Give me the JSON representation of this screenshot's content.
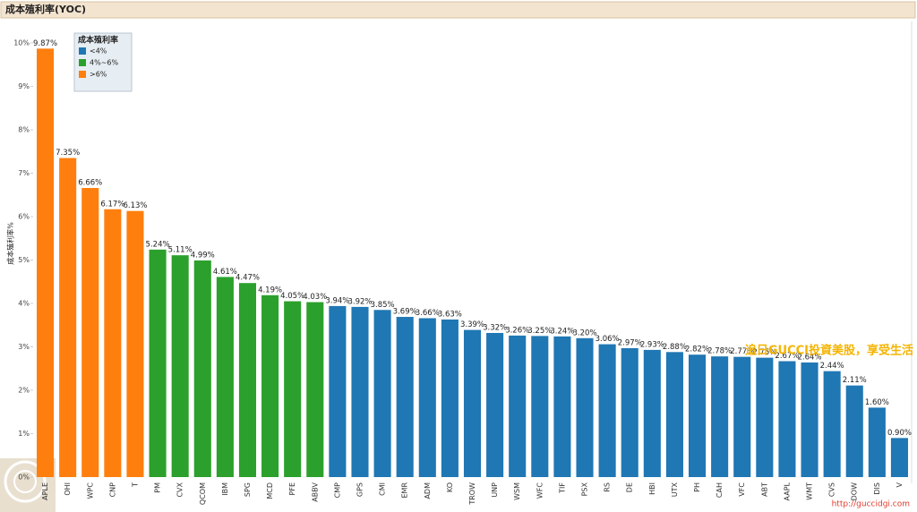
{
  "chart_data": {
    "type": "bar",
    "title": "成本殖利率(YOC)",
    "y_label": "成本殖利率%",
    "categories": [
      "APLE",
      "OHI",
      "WPC",
      "CNP",
      "T",
      "PM",
      "CVX",
      "QCOM",
      "IBM",
      "SPG",
      "MCD",
      "PFE",
      "ABBV",
      "CMP",
      "GPS",
      "CMI",
      "EMR",
      "ADM",
      "KO",
      "TROW",
      "UNP",
      "WSM",
      "WFC",
      "TIF",
      "PSX",
      "RS",
      "DE",
      "HBI",
      "UTX",
      "PH",
      "CAH",
      "VFC",
      "ABT",
      "AAPL",
      "WMT",
      "CVS",
      "DOW",
      "DIS",
      "V"
    ],
    "legend_title": "成本殖利率",
    "series": [
      {
        "name": "<4%",
        "color": "#1f77b4",
        "values": [
          null,
          null,
          null,
          null,
          null,
          null,
          null,
          null,
          null,
          null,
          null,
          null,
          null,
          3.94,
          3.92,
          3.85,
          3.69,
          3.66,
          3.63,
          3.39,
          3.32,
          3.26,
          3.25,
          3.24,
          3.2,
          3.06,
          2.97,
          2.93,
          2.88,
          2.82,
          2.78,
          2.77,
          2.75,
          2.67,
          2.64,
          2.44,
          2.11,
          1.6,
          0.9
        ],
        "value_labels": [
          null,
          null,
          null,
          null,
          null,
          null,
          null,
          null,
          null,
          null,
          null,
          null,
          null,
          "3.94%",
          "3.92%",
          "3.85%",
          "3.69%",
          "3.66%",
          "3.63%",
          "3.39%",
          "3.32%",
          "3.26%",
          "3.25%",
          "3.24%",
          "3.20%",
          "3.06%",
          "2.97%",
          "2.93%",
          "2.88%",
          "2.82%",
          "2.78%",
          "2.77%",
          "2.75%",
          "2.67%",
          "2.64%",
          "2.44%",
          "2.11%",
          "1.60%",
          "0.90%"
        ]
      },
      {
        "name": "4%~6%",
        "color": "#2ca02c",
        "values": [
          null,
          null,
          null,
          null,
          null,
          5.24,
          5.11,
          4.99,
          4.61,
          4.47,
          4.19,
          4.05,
          4.03,
          null,
          null,
          null,
          null,
          null,
          null,
          null,
          null,
          null,
          null,
          null,
          null,
          null,
          null,
          null,
          null,
          null,
          null,
          null,
          null,
          null,
          null,
          null,
          null,
          null,
          null
        ],
        "value_labels": [
          null,
          null,
          null,
          null,
          null,
          "5.24%",
          "5.11%",
          "4.99%",
          "4.61%",
          "4.47%",
          "4.19%",
          "4.05%",
          "4.03%",
          null,
          null,
          null,
          null,
          null,
          null,
          null,
          null,
          null,
          null,
          null,
          null,
          null,
          null,
          null,
          null,
          null,
          null,
          null,
          null,
          null,
          null,
          null,
          null,
          null,
          null
        ]
      },
      {
        "name": ">6%",
        "color": "#ff7f0e",
        "values": [
          9.87,
          7.35,
          6.66,
          6.17,
          6.13,
          null,
          null,
          null,
          null,
          null,
          null,
          null,
          null,
          null,
          null,
          null,
          null,
          null,
          null,
          null,
          null,
          null,
          null,
          null,
          null,
          null,
          null,
          null,
          null,
          null,
          null,
          null,
          null,
          null,
          null,
          null,
          null,
          null,
          null
        ],
        "value_labels": [
          "9.87%",
          "7.35%",
          "6.66%",
          "6.17%",
          "6.13%",
          null,
          null,
          null,
          null,
          null,
          null,
          null,
          null,
          null,
          null,
          null,
          null,
          null,
          null,
          null,
          null,
          null,
          null,
          null,
          null,
          null,
          null,
          null,
          null,
          null,
          null,
          null,
          null,
          null,
          null,
          null,
          null,
          null,
          null
        ]
      }
    ],
    "ylim": [
      0,
      10
    ],
    "yticks": [
      {
        "value": 0,
        "label": "0%"
      },
      {
        "value": 1,
        "label": "1%"
      },
      {
        "value": 2,
        "label": "2%"
      },
      {
        "value": 3,
        "label": "3%"
      },
      {
        "value": 4,
        "label": "4%"
      },
      {
        "value": 5,
        "label": "5%"
      },
      {
        "value": 6,
        "label": "6%"
      },
      {
        "value": 7,
        "label": "7%"
      },
      {
        "value": 8,
        "label": "8%"
      },
      {
        "value": 9,
        "label": "9%"
      },
      {
        "value": 10,
        "label": "10%"
      }
    ],
    "grid": false,
    "annotations": [
      "追日GUCCI投資美股，享受生活",
      "http://guccidgi.com"
    ]
  }
}
